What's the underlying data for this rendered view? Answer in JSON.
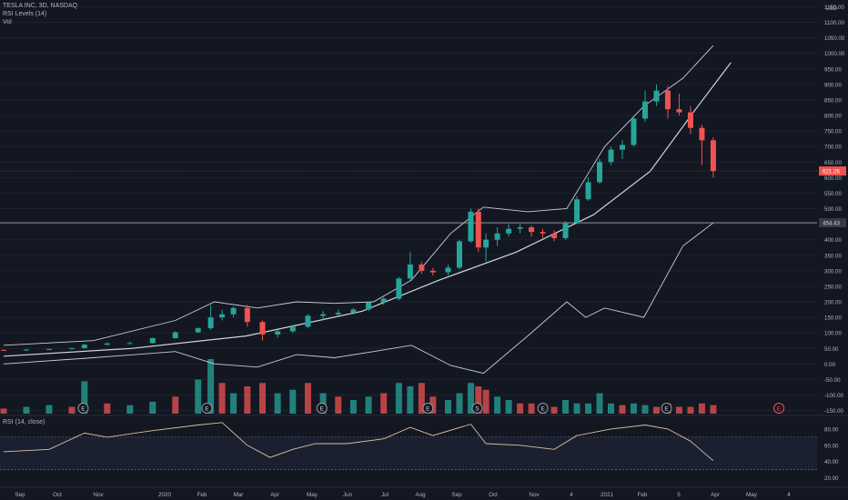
{
  "header": {
    "title": "TESLA INC, 3D, NASDAQ",
    "rsi_levels_label": "RSI Levels (14)",
    "vol_label": "Vol",
    "rsi_label": "RSI (14, close)"
  },
  "colors": {
    "background": "#131722",
    "up": "#26a69a",
    "down": "#ef5350",
    "line": "#c9cdd6",
    "rsi": "#d8c29b"
  },
  "price_axis": {
    "currency": "USD",
    "ticks": [
      "1150.00",
      "1100.00",
      "1050.00",
      "1000.00",
      "950.00",
      "900.00",
      "850.00",
      "800.00",
      "750.00",
      "700.00",
      "650.00",
      "600.00",
      "550.00",
      "500.00",
      "450.00",
      "400.00",
      "350.00",
      "300.00",
      "250.00",
      "200.00",
      "150.00",
      "100.00",
      "50.00",
      "0.00",
      "-50.00",
      "-100.00",
      "-150.00"
    ],
    "last_price_label": "621.26",
    "horizontal_level_label": "454.43"
  },
  "rsi_axis": {
    "ticks": [
      "80.00",
      "60.00",
      "40.00",
      "20.00"
    ],
    "upper_level": 70,
    "lower_level": 30
  },
  "time_axis": {
    "labels": [
      "Sep",
      "Oct",
      "Nov",
      "2020",
      "Feb",
      "Mar",
      "Apr",
      "May",
      "Jun",
      "Jul",
      "Aug",
      "Sep",
      "Oct",
      "Nov",
      "4",
      "2021",
      "Feb",
      "5",
      "Apr",
      "May",
      "4"
    ]
  },
  "earnings_markers": [
    "E",
    "E",
    "E",
    "E",
    "S",
    "E",
    "E",
    "E"
  ],
  "chart_data": {
    "type": "candlestick",
    "title": "TESLA INC, 3D, NASDAQ",
    "y_unit": "USD",
    "ylim": [
      -160,
      1160
    ],
    "x_range": [
      "2019-08-22",
      "2021-05-20"
    ],
    "horizontal_level": 454.43,
    "last_price": 621.26,
    "candles": [
      {
        "t": "2019-08-22",
        "o": 45,
        "h": 47,
        "l": 43,
        "c": 44
      },
      {
        "t": "2019-09-09",
        "o": 44,
        "h": 48,
        "l": 43,
        "c": 46
      },
      {
        "t": "2019-09-27",
        "o": 46,
        "h": 49,
        "l": 45,
        "c": 48
      },
      {
        "t": "2019-10-15",
        "o": 48,
        "h": 52,
        "l": 47,
        "c": 51
      },
      {
        "t": "2019-10-25",
        "o": 51,
        "h": 65,
        "l": 50,
        "c": 62
      },
      {
        "t": "2019-11-12",
        "o": 62,
        "h": 70,
        "l": 60,
        "c": 66
      },
      {
        "t": "2019-11-30",
        "o": 66,
        "h": 72,
        "l": 64,
        "c": 67
      },
      {
        "t": "2019-12-18",
        "o": 67,
        "h": 85,
        "l": 66,
        "c": 83
      },
      {
        "t": "2020-01-05",
        "o": 83,
        "h": 105,
        "l": 82,
        "c": 102
      },
      {
        "t": "2020-01-23",
        "o": 102,
        "h": 118,
        "l": 99,
        "c": 115
      },
      {
        "t": "2020-02-02",
        "o": 115,
        "h": 190,
        "l": 110,
        "c": 150
      },
      {
        "t": "2020-02-11",
        "o": 150,
        "h": 175,
        "l": 140,
        "c": 160
      },
      {
        "t": "2020-02-20",
        "o": 160,
        "h": 185,
        "l": 150,
        "c": 180
      },
      {
        "t": "2020-03-02",
        "o": 180,
        "h": 190,
        "l": 120,
        "c": 135
      },
      {
        "t": "2020-03-14",
        "o": 135,
        "h": 140,
        "l": 75,
        "c": 95
      },
      {
        "t": "2020-03-26",
        "o": 95,
        "h": 110,
        "l": 85,
        "c": 105
      },
      {
        "t": "2020-04-07",
        "o": 105,
        "h": 125,
        "l": 100,
        "c": 120
      },
      {
        "t": "2020-04-19",
        "o": 120,
        "h": 160,
        "l": 115,
        "c": 155
      },
      {
        "t": "2020-05-01",
        "o": 155,
        "h": 170,
        "l": 140,
        "c": 160
      },
      {
        "t": "2020-05-13",
        "o": 160,
        "h": 175,
        "l": 155,
        "c": 165
      },
      {
        "t": "2020-05-25",
        "o": 165,
        "h": 180,
        "l": 160,
        "c": 175
      },
      {
        "t": "2020-06-06",
        "o": 175,
        "h": 200,
        "l": 170,
        "c": 198
      },
      {
        "t": "2020-06-18",
        "o": 198,
        "h": 215,
        "l": 190,
        "c": 210
      },
      {
        "t": "2020-06-30",
        "o": 210,
        "h": 280,
        "l": 205,
        "c": 275
      },
      {
        "t": "2020-07-09",
        "o": 275,
        "h": 360,
        "l": 270,
        "c": 320
      },
      {
        "t": "2020-07-18",
        "o": 320,
        "h": 330,
        "l": 290,
        "c": 300
      },
      {
        "t": "2020-07-27",
        "o": 300,
        "h": 310,
        "l": 285,
        "c": 295
      },
      {
        "t": "2020-08-08",
        "o": 295,
        "h": 320,
        "l": 285,
        "c": 310
      },
      {
        "t": "2020-08-17",
        "o": 310,
        "h": 400,
        "l": 305,
        "c": 395
      },
      {
        "t": "2020-08-26",
        "o": 395,
        "h": 500,
        "l": 390,
        "c": 490
      },
      {
        "t": "2020-09-01",
        "o": 490,
        "h": 500,
        "l": 360,
        "c": 375
      },
      {
        "t": "2020-09-07",
        "o": 375,
        "h": 420,
        "l": 330,
        "c": 400
      },
      {
        "t": "2020-09-16",
        "o": 400,
        "h": 440,
        "l": 380,
        "c": 420
      },
      {
        "t": "2020-09-25",
        "o": 420,
        "h": 450,
        "l": 410,
        "c": 435
      },
      {
        "t": "2020-10-04",
        "o": 435,
        "h": 450,
        "l": 420,
        "c": 440
      },
      {
        "t": "2020-10-13",
        "o": 440,
        "h": 445,
        "l": 410,
        "c": 425
      },
      {
        "t": "2020-10-22",
        "o": 425,
        "h": 435,
        "l": 405,
        "c": 420
      },
      {
        "t": "2020-10-31",
        "o": 420,
        "h": 430,
        "l": 395,
        "c": 405
      },
      {
        "t": "2020-11-09",
        "o": 405,
        "h": 460,
        "l": 400,
        "c": 455
      },
      {
        "t": "2020-11-18",
        "o": 455,
        "h": 540,
        "l": 450,
        "c": 530
      },
      {
        "t": "2020-11-27",
        "o": 530,
        "h": 600,
        "l": 525,
        "c": 585
      },
      {
        "t": "2020-12-06",
        "o": 585,
        "h": 660,
        "l": 580,
        "c": 650
      },
      {
        "t": "2020-12-15",
        "o": 650,
        "h": 700,
        "l": 640,
        "c": 690
      },
      {
        "t": "2020-12-24",
        "o": 690,
        "h": 720,
        "l": 660,
        "c": 705
      },
      {
        "t": "2021-01-02",
        "o": 705,
        "h": 800,
        "l": 700,
        "c": 790
      },
      {
        "t": "2021-01-11",
        "o": 790,
        "h": 880,
        "l": 780,
        "c": 845
      },
      {
        "t": "2021-01-20",
        "o": 845,
        "h": 900,
        "l": 830,
        "c": 880
      },
      {
        "t": "2021-01-29",
        "o": 880,
        "h": 895,
        "l": 790,
        "c": 820
      },
      {
        "t": "2021-02-07",
        "o": 820,
        "h": 870,
        "l": 800,
        "c": 810
      },
      {
        "t": "2021-02-16",
        "o": 810,
        "h": 830,
        "l": 740,
        "c": 760
      },
      {
        "t": "2021-02-25",
        "o": 760,
        "h": 770,
        "l": 640,
        "c": 720
      },
      {
        "t": "2021-03-06",
        "o": 720,
        "h": 730,
        "l": 600,
        "c": 621
      }
    ],
    "upper_band_line": [
      {
        "t": "2019-08-22",
        "y": 60
      },
      {
        "t": "2019-11-01",
        "y": 75
      },
      {
        "t": "2020-01-05",
        "y": 140
      },
      {
        "t": "2020-02-05",
        "y": 200
      },
      {
        "t": "2020-03-10",
        "y": 180
      },
      {
        "t": "2020-04-10",
        "y": 200
      },
      {
        "t": "2020-05-10",
        "y": 195
      },
      {
        "t": "2020-06-10",
        "y": 200
      },
      {
        "t": "2020-07-10",
        "y": 270
      },
      {
        "t": "2020-08-10",
        "y": 420
      },
      {
        "t": "2020-09-05",
        "y": 505
      },
      {
        "t": "2020-10-10",
        "y": 490
      },
      {
        "t": "2020-11-10",
        "y": 500
      },
      {
        "t": "2020-12-10",
        "y": 700
      },
      {
        "t": "2021-01-10",
        "y": 830
      },
      {
        "t": "2021-02-10",
        "y": 920
      },
      {
        "t": "2021-03-06",
        "y": 1025
      }
    ],
    "lower_band_line": [
      {
        "t": "2019-08-22",
        "y": 0
      },
      {
        "t": "2019-11-01",
        "y": 20
      },
      {
        "t": "2020-01-05",
        "y": 40
      },
      {
        "t": "2020-02-05",
        "y": 0
      },
      {
        "t": "2020-03-10",
        "y": -10
      },
      {
        "t": "2020-04-10",
        "y": 30
      },
      {
        "t": "2020-05-10",
        "y": 20
      },
      {
        "t": "2020-06-10",
        "y": 40
      },
      {
        "t": "2020-07-10",
        "y": 60
      },
      {
        "t": "2020-08-10",
        "y": -5
      },
      {
        "t": "2020-09-05",
        "y": -30
      },
      {
        "t": "2020-10-10",
        "y": 90
      },
      {
        "t": "2020-11-10",
        "y": 200
      },
      {
        "t": "2020-11-25",
        "y": 150
      },
      {
        "t": "2020-12-10",
        "y": 180
      },
      {
        "t": "2021-01-10",
        "y": 150
      },
      {
        "t": "2021-02-10",
        "y": 380
      },
      {
        "t": "2021-03-06",
        "y": 454
      }
    ],
    "trend_curve": [
      {
        "t": "2019-08-22",
        "y": 25
      },
      {
        "t": "2019-12-01",
        "y": 50
      },
      {
        "t": "2020-03-01",
        "y": 90
      },
      {
        "t": "2020-06-01",
        "y": 170
      },
      {
        "t": "2020-08-01",
        "y": 270
      },
      {
        "t": "2020-10-01",
        "y": 360
      },
      {
        "t": "2020-12-01",
        "y": 480
      },
      {
        "t": "2021-01-15",
        "y": 620
      },
      {
        "t": "2021-02-20",
        "y": 820
      },
      {
        "t": "2021-03-20",
        "y": 970
      }
    ],
    "volume": [
      {
        "t": "2019-08-22",
        "v": 1.5,
        "d": "down"
      },
      {
        "t": "2019-09-09",
        "v": 2,
        "d": "up"
      },
      {
        "t": "2019-09-27",
        "v": 2.5,
        "d": "up"
      },
      {
        "t": "2019-10-15",
        "v": 2,
        "d": "down"
      },
      {
        "t": "2019-10-25",
        "v": 9.5,
        "d": "up"
      },
      {
        "t": "2019-11-12",
        "v": 3,
        "d": "down"
      },
      {
        "t": "2019-11-30",
        "v": 2.5,
        "d": "up"
      },
      {
        "t": "2019-12-18",
        "v": 3.5,
        "d": "up"
      },
      {
        "t": "2020-01-05",
        "v": 5,
        "d": "down"
      },
      {
        "t": "2020-01-23",
        "v": 10,
        "d": "up"
      },
      {
        "t": "2020-02-02",
        "v": 16,
        "d": "up"
      },
      {
        "t": "2020-02-11",
        "v": 9,
        "d": "down"
      },
      {
        "t": "2020-02-20",
        "v": 6,
        "d": "up"
      },
      {
        "t": "2020-03-02",
        "v": 8,
        "d": "down"
      },
      {
        "t": "2020-03-14",
        "v": 9,
        "d": "down"
      },
      {
        "t": "2020-03-26",
        "v": 6,
        "d": "up"
      },
      {
        "t": "2020-04-07",
        "v": 7,
        "d": "up"
      },
      {
        "t": "2020-04-19",
        "v": 9,
        "d": "down"
      },
      {
        "t": "2020-05-01",
        "v": 6,
        "d": "up"
      },
      {
        "t": "2020-05-13",
        "v": 5,
        "d": "down"
      },
      {
        "t": "2020-05-25",
        "v": 4,
        "d": "up"
      },
      {
        "t": "2020-06-06",
        "v": 5,
        "d": "up"
      },
      {
        "t": "2020-06-18",
        "v": 6,
        "d": "down"
      },
      {
        "t": "2020-06-30",
        "v": 9,
        "d": "up"
      },
      {
        "t": "2020-07-09",
        "v": 8,
        "d": "up"
      },
      {
        "t": "2020-07-18",
        "v": 9,
        "d": "down"
      },
      {
        "t": "2020-07-27",
        "v": 5,
        "d": "down"
      },
      {
        "t": "2020-08-08",
        "v": 4,
        "d": "up"
      },
      {
        "t": "2020-08-17",
        "v": 6,
        "d": "up"
      },
      {
        "t": "2020-08-26",
        "v": 9,
        "d": "up"
      },
      {
        "t": "2020-09-01",
        "v": 8,
        "d": "down"
      },
      {
        "t": "2020-09-07",
        "v": 7,
        "d": "down"
      },
      {
        "t": "2020-09-16",
        "v": 5,
        "d": "up"
      },
      {
        "t": "2020-09-25",
        "v": 4,
        "d": "up"
      },
      {
        "t": "2020-10-04",
        "v": 3,
        "d": "down"
      },
      {
        "t": "2020-10-13",
        "v": 3,
        "d": "down"
      },
      {
        "t": "2020-10-22",
        "v": 2.5,
        "d": "down"
      },
      {
        "t": "2020-10-31",
        "v": 2,
        "d": "down"
      },
      {
        "t": "2020-11-09",
        "v": 4,
        "d": "up"
      },
      {
        "t": "2020-11-18",
        "v": 3,
        "d": "up"
      },
      {
        "t": "2020-11-27",
        "v": 3,
        "d": "up"
      },
      {
        "t": "2020-12-06",
        "v": 6,
        "d": "up"
      },
      {
        "t": "2020-12-15",
        "v": 3,
        "d": "up"
      },
      {
        "t": "2020-12-24",
        "v": 2.5,
        "d": "down"
      },
      {
        "t": "2021-01-02",
        "v": 3,
        "d": "up"
      },
      {
        "t": "2021-01-11",
        "v": 2.5,
        "d": "up"
      },
      {
        "t": "2021-01-20",
        "v": 2,
        "d": "down"
      },
      {
        "t": "2021-01-29",
        "v": 3,
        "d": "down"
      },
      {
        "t": "2021-02-07",
        "v": 2,
        "d": "down"
      },
      {
        "t": "2021-02-16",
        "v": 2,
        "d": "down"
      },
      {
        "t": "2021-02-25",
        "v": 3,
        "d": "down"
      },
      {
        "t": "2021-03-06",
        "v": 2.5,
        "d": "down"
      }
    ],
    "earnings_dates": [
      "2019-10-24",
      "2020-01-30",
      "2020-04-30",
      "2020-07-23",
      "2020-08-31",
      "2020-10-22",
      "2021-01-28",
      "2021-04-27"
    ],
    "rsi": [
      {
        "t": "2019-08-22",
        "y": 52
      },
      {
        "t": "2019-09-27",
        "y": 55
      },
      {
        "t": "2019-10-25",
        "y": 75
      },
      {
        "t": "2019-11-12",
        "y": 70
      },
      {
        "t": "2019-12-18",
        "y": 78
      },
      {
        "t": "2020-01-23",
        "y": 85
      },
      {
        "t": "2020-02-11",
        "y": 88
      },
      {
        "t": "2020-03-02",
        "y": 60
      },
      {
        "t": "2020-03-20",
        "y": 45
      },
      {
        "t": "2020-04-07",
        "y": 55
      },
      {
        "t": "2020-04-25",
        "y": 62
      },
      {
        "t": "2020-05-20",
        "y": 62
      },
      {
        "t": "2020-06-18",
        "y": 68
      },
      {
        "t": "2020-07-09",
        "y": 82
      },
      {
        "t": "2020-07-27",
        "y": 72
      },
      {
        "t": "2020-08-26",
        "y": 86
      },
      {
        "t": "2020-09-07",
        "y": 62
      },
      {
        "t": "2020-10-04",
        "y": 60
      },
      {
        "t": "2020-10-31",
        "y": 55
      },
      {
        "t": "2020-11-18",
        "y": 72
      },
      {
        "t": "2020-12-15",
        "y": 80
      },
      {
        "t": "2021-01-11",
        "y": 85
      },
      {
        "t": "2021-01-29",
        "y": 80
      },
      {
        "t": "2021-02-16",
        "y": 65
      },
      {
        "t": "2021-03-06",
        "y": 41
      }
    ]
  }
}
